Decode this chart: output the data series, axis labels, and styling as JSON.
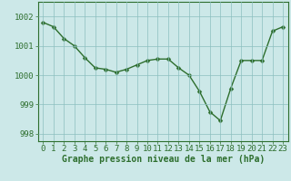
{
  "x": [
    0,
    1,
    2,
    3,
    4,
    5,
    6,
    7,
    8,
    9,
    10,
    11,
    12,
    13,
    14,
    15,
    16,
    17,
    18,
    19,
    20,
    21,
    22,
    23
  ],
  "y": [
    1001.8,
    1001.65,
    1001.25,
    1001.0,
    1000.6,
    1000.25,
    1000.2,
    1000.1,
    1000.2,
    1000.35,
    1000.5,
    1000.55,
    1000.55,
    1000.25,
    1000.0,
    999.45,
    998.75,
    998.45,
    999.55,
    1000.5,
    1000.5,
    1000.5,
    1001.5,
    1001.65
  ],
  "line_color": "#2d6e2d",
  "marker_color": "#2d6e2d",
  "bg_color": "#cce8e8",
  "grid_color": "#8cbfbf",
  "axis_color": "#2d6e2d",
  "xlabel": "Graphe pression niveau de la mer (hPa)",
  "ylim": [
    997.75,
    1002.5
  ],
  "yticks": [
    998,
    999,
    1000,
    1001,
    1002
  ],
  "ytick_labels": [
    "998",
    "999",
    "1000",
    "1001",
    "1002"
  ],
  "xticks": [
    0,
    1,
    2,
    3,
    4,
    5,
    6,
    7,
    8,
    9,
    10,
    11,
    12,
    13,
    14,
    15,
    16,
    17,
    18,
    19,
    20,
    21,
    22,
    23
  ],
  "xlabel_fontsize": 7,
  "tick_fontsize": 6.5,
  "line_width": 1.0,
  "marker_size": 2.5
}
